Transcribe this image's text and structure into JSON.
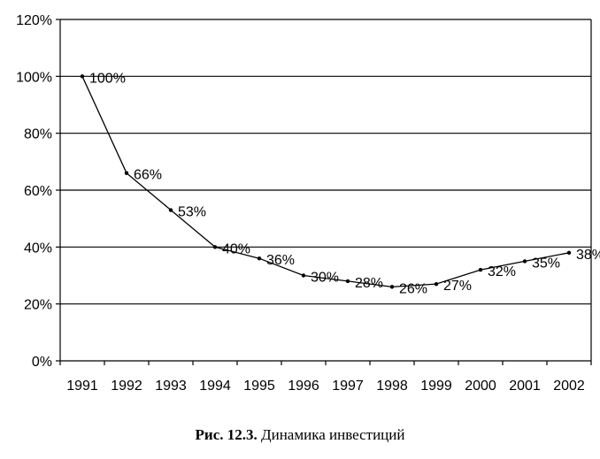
{
  "caption": {
    "number": "Рис. 12.3.",
    "text": " Динамика инвестиций"
  },
  "colors": {
    "line": "#000000",
    "grid": "#000000",
    "background": "#ffffff"
  },
  "chart_data": {
    "type": "line",
    "title": "",
    "xlabel": "",
    "ylabel": "",
    "categories": [
      "1991",
      "1992",
      "1993",
      "1994",
      "1995",
      "1996",
      "1997",
      "1998",
      "1999",
      "2000",
      "2001",
      "2002"
    ],
    "series": [
      {
        "values": [
          100,
          66,
          53,
          40,
          36,
          30,
          28,
          26,
          27,
          32,
          35,
          38
        ],
        "labels": [
          "100%",
          "66%",
          "53%",
          "40%",
          "36%",
          "30%",
          "28%",
          "26%",
          "27%",
          "32%",
          "35%",
          "38%"
        ]
      }
    ],
    "ylim": [
      0,
      120
    ],
    "yticks": [
      0,
      20,
      40,
      60,
      80,
      100,
      120
    ],
    "ytick_labels": [
      "0%",
      "20%",
      "40%",
      "60%",
      "80%",
      "100%",
      "120%"
    ],
    "grid": "horizontal",
    "legend": "none",
    "markers": true
  }
}
